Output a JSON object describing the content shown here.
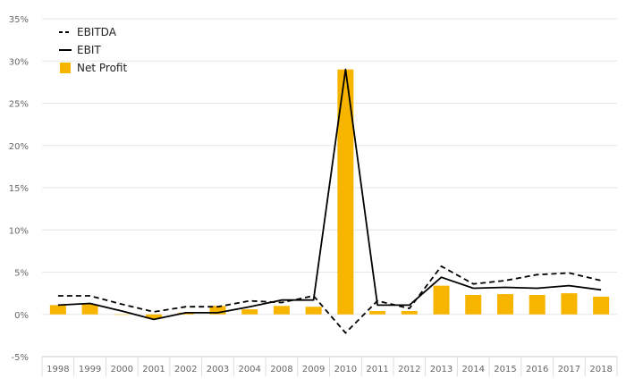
{
  "chart_data": {
    "type": "bar",
    "categories": [
      "1998",
      "1999",
      "2000",
      "2001",
      "2002",
      "2003",
      "2004",
      "2008",
      "2009",
      "2010",
      "2011",
      "2012",
      "2013",
      "2014",
      "2015",
      "2016",
      "2017",
      "2018"
    ],
    "y_ticks": [
      "-5%",
      "0%",
      "5%",
      "10%",
      "15%",
      "20%",
      "25%",
      "30%",
      "35%"
    ],
    "ylim": [
      -5,
      35
    ],
    "unit": "%",
    "grid": true,
    "legend_position": "top-left",
    "series": [
      {
        "name": "EBITDA",
        "kind": "line",
        "style": "dashed",
        "color": "#000000",
        "values": [
          2.2,
          2.2,
          1.2,
          0.3,
          0.9,
          0.9,
          1.6,
          1.4,
          2.2,
          -2.2,
          1.6,
          0.7,
          5.7,
          3.6,
          4.0,
          4.7,
          4.9,
          4.0
        ]
      },
      {
        "name": "EBIT",
        "kind": "line",
        "style": "solid",
        "color": "#000000",
        "values": [
          1.1,
          1.3,
          0.4,
          -0.6,
          0.2,
          0.2,
          0.9,
          1.7,
          1.7,
          29.0,
          1.1,
          1.1,
          4.4,
          3.1,
          3.2,
          3.1,
          3.4,
          2.9
        ]
      },
      {
        "name": "Net Profit",
        "kind": "bar",
        "color": "#F7B500",
        "values": [
          1.1,
          1.2,
          0.0,
          -0.5,
          0.2,
          1.0,
          0.6,
          1.0,
          0.9,
          29.0,
          0.4,
          0.4,
          3.4,
          2.3,
          2.4,
          2.3,
          2.5,
          2.1
        ]
      }
    ]
  }
}
